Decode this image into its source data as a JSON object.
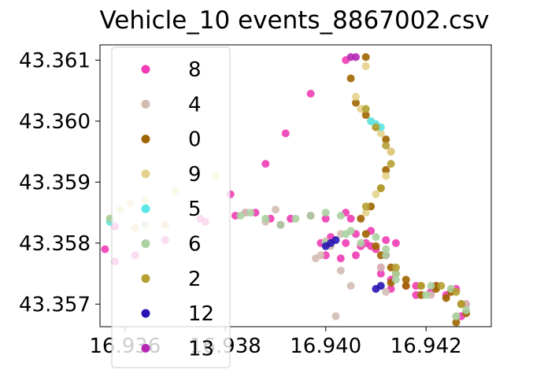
{
  "chart_data": {
    "type": "scatter",
    "title": "Vehicle_10 events_8867002.csv",
    "xlabel": "",
    "ylabel": "",
    "xlim": [
      16.9355,
      16.9433
    ],
    "ylim": [
      43.35663,
      43.36125
    ],
    "x_ticks": [
      16.936,
      16.938,
      16.94,
      16.942
    ],
    "x_tick_labels": [
      "16.936",
      "16.938",
      "16.940",
      "16.942"
    ],
    "y_ticks": [
      43.357,
      43.358,
      43.359,
      43.36,
      43.361
    ],
    "y_tick_labels": [
      "43.357",
      "43.358",
      "43.359",
      "43.360",
      "43.361"
    ],
    "grid": false,
    "legend_position": "upper-left",
    "legend": [
      "8",
      "4",
      "0",
      "9",
      "5",
      "6",
      "2",
      "12",
      "13"
    ],
    "series": [
      {
        "name": "8",
        "color": "#f03cb4",
        "x": [
          16.9404,
          16.9397,
          16.9392,
          16.9388,
          16.9381,
          16.9375,
          16.9368,
          16.9362,
          16.9358,
          16.9356,
          16.9358,
          16.9362,
          16.9368,
          16.9376,
          16.9382,
          16.9384,
          16.9386,
          16.9389,
          16.9391,
          16.9393,
          16.9397,
          16.94,
          16.9404,
          16.9405,
          16.9406,
          16.9407,
          16.9408,
          16.9409,
          16.941,
          16.9411,
          16.9413,
          16.9418,
          16.9422,
          16.9426,
          16.9428,
          16.9427,
          16.9424,
          16.9421,
          16.9418,
          16.9416,
          16.9413,
          16.9411,
          16.9412,
          16.9414,
          16.9412,
          16.9409,
          16.9406,
          16.9403,
          16.94,
          16.9399,
          16.9401,
          16.9404
        ],
        "y": [
          43.361,
          43.36045,
          43.3598,
          43.3593,
          43.3588,
          43.3584,
          43.35805,
          43.3578,
          43.3577,
          43.3579,
          43.35827,
          43.35825,
          43.3583,
          43.35835,
          43.35845,
          43.3585,
          43.3585,
          43.3584,
          43.3583,
          43.3584,
          43.35845,
          43.3584,
          43.3585,
          43.3584,
          43.35815,
          43.35795,
          43.358,
          43.3582,
          43.3579,
          43.3576,
          43.3574,
          43.3573,
          43.3573,
          43.35725,
          43.357,
          43.3568,
          43.35715,
          43.3572,
          43.35715,
          43.3573,
          43.35725,
          43.3575,
          43.3578,
          43.358,
          43.35805,
          43.35795,
          43.3578,
          43.35775,
          43.3578,
          43.358,
          43.3581,
          43.358
        ]
      },
      {
        "name": "4",
        "color": "#d4bcb4",
        "x": [
          16.9403,
          16.9401,
          16.9399,
          16.9403,
          16.9405,
          16.9402,
          16.9388,
          16.9384,
          16.939,
          16.9411,
          16.9412,
          16.9419,
          16.9425,
          16.9428,
          16.9426,
          16.9421,
          16.9398,
          16.94
        ],
        "y": [
          43.35815,
          43.35795,
          43.3578,
          43.35755,
          43.3573,
          43.3568,
          43.35835,
          43.3585,
          43.35855,
          43.3576,
          43.3572,
          43.35715,
          43.35725,
          43.357,
          43.3568,
          43.35715,
          43.35775,
          43.35803
        ]
      },
      {
        "name": "0",
        "color": "#a06400",
        "x": [
          16.9408,
          16.9405,
          16.9406,
          16.9408,
          16.941,
          16.9412,
          16.9413,
          16.9412,
          16.9411,
          16.9409,
          16.9407,
          16.9408,
          16.941,
          16.9411,
          16.9413,
          16.9414,
          16.9413,
          16.9416,
          16.9419,
          16.9422,
          16.9425,
          16.9427,
          16.9428,
          16.9426,
          16.9424,
          16.9422,
          16.9419,
          16.9416
        ],
        "y": [
          43.36105,
          43.3607,
          43.3603,
          43.3601,
          43.3599,
          43.3597,
          43.3595,
          43.3592,
          43.3589,
          43.3586,
          43.3584,
          43.35815,
          43.35795,
          43.3578,
          43.3576,
          43.3575,
          43.35735,
          43.3574,
          43.3573,
          43.3573,
          43.3572,
          43.357,
          43.35685,
          43.3567,
          43.3571,
          43.35725,
          43.35715,
          43.3573
        ]
      },
      {
        "name": "9",
        "color": "#e6d28c",
        "x": [
          16.9408,
          16.9406,
          16.9407,
          16.9409,
          16.9411,
          16.9413,
          16.9412,
          16.941,
          16.9408,
          16.9378,
          16.937,
          16.9364,
          16.9361,
          16.9359,
          16.9357,
          16.9362,
          16.9368
        ],
        "y": [
          43.3609,
          43.3604,
          43.3602,
          43.36,
          43.3598,
          43.3595,
          43.3591,
          43.3588,
          43.3585,
          43.3591,
          43.35885,
          43.3587,
          43.35865,
          43.35855,
          43.3584,
          43.35825,
          43.3583
        ]
      },
      {
        "name": "5",
        "color": "#5ae6e6",
        "x": [
          16.9409,
          16.941,
          16.9411,
          16.9357
        ],
        "y": [
          43.36,
          43.35995,
          43.3599,
          43.35835
        ]
      },
      {
        "name": "6",
        "color": "#aad2a0",
        "x": [
          16.9383,
          16.9385,
          16.9388,
          16.9391,
          16.9394,
          16.9397,
          16.94,
          16.9403,
          16.9405,
          16.9407,
          16.941,
          16.9412,
          16.9414,
          16.9421,
          16.9425,
          16.9428,
          16.9426,
          16.942,
          16.9414,
          16.9412,
          16.9404,
          16.94,
          16.9357,
          16.9364
        ],
        "y": [
          43.35845,
          43.3585,
          43.3584,
          43.3583,
          43.3584,
          43.35845,
          43.3585,
          43.35845,
          43.3582,
          43.358,
          43.3581,
          43.3578,
          43.3575,
          43.3573,
          43.35725,
          43.3569,
          43.3568,
          43.35715,
          43.3574,
          43.3579,
          43.35815,
          43.358,
          43.3584,
          43.3583
        ]
      },
      {
        "name": "2",
        "color": "#b4a032",
        "x": [
          16.9408,
          16.941,
          16.9412,
          16.9413,
          16.9411,
          16.9408,
          16.9414,
          16.9419,
          16.9423,
          16.9426,
          16.9427
        ],
        "y": [
          43.3602,
          43.3599,
          43.3596,
          43.3593,
          43.3589,
          43.3586,
          43.3576,
          43.3573,
          43.3573,
          43.3572,
          43.357
        ]
      },
      {
        "name": "12",
        "color": "#2814b4",
        "x": [
          16.94,
          16.9401,
          16.9402,
          16.941,
          16.9411
        ],
        "y": [
          43.35795,
          43.358,
          43.35805,
          43.35725,
          43.3573
        ]
      },
      {
        "name": "13",
        "color": "#b428b4",
        "x": [
          16.9405,
          16.9406
        ],
        "y": [
          43.36105,
          43.36105
        ]
      }
    ]
  }
}
